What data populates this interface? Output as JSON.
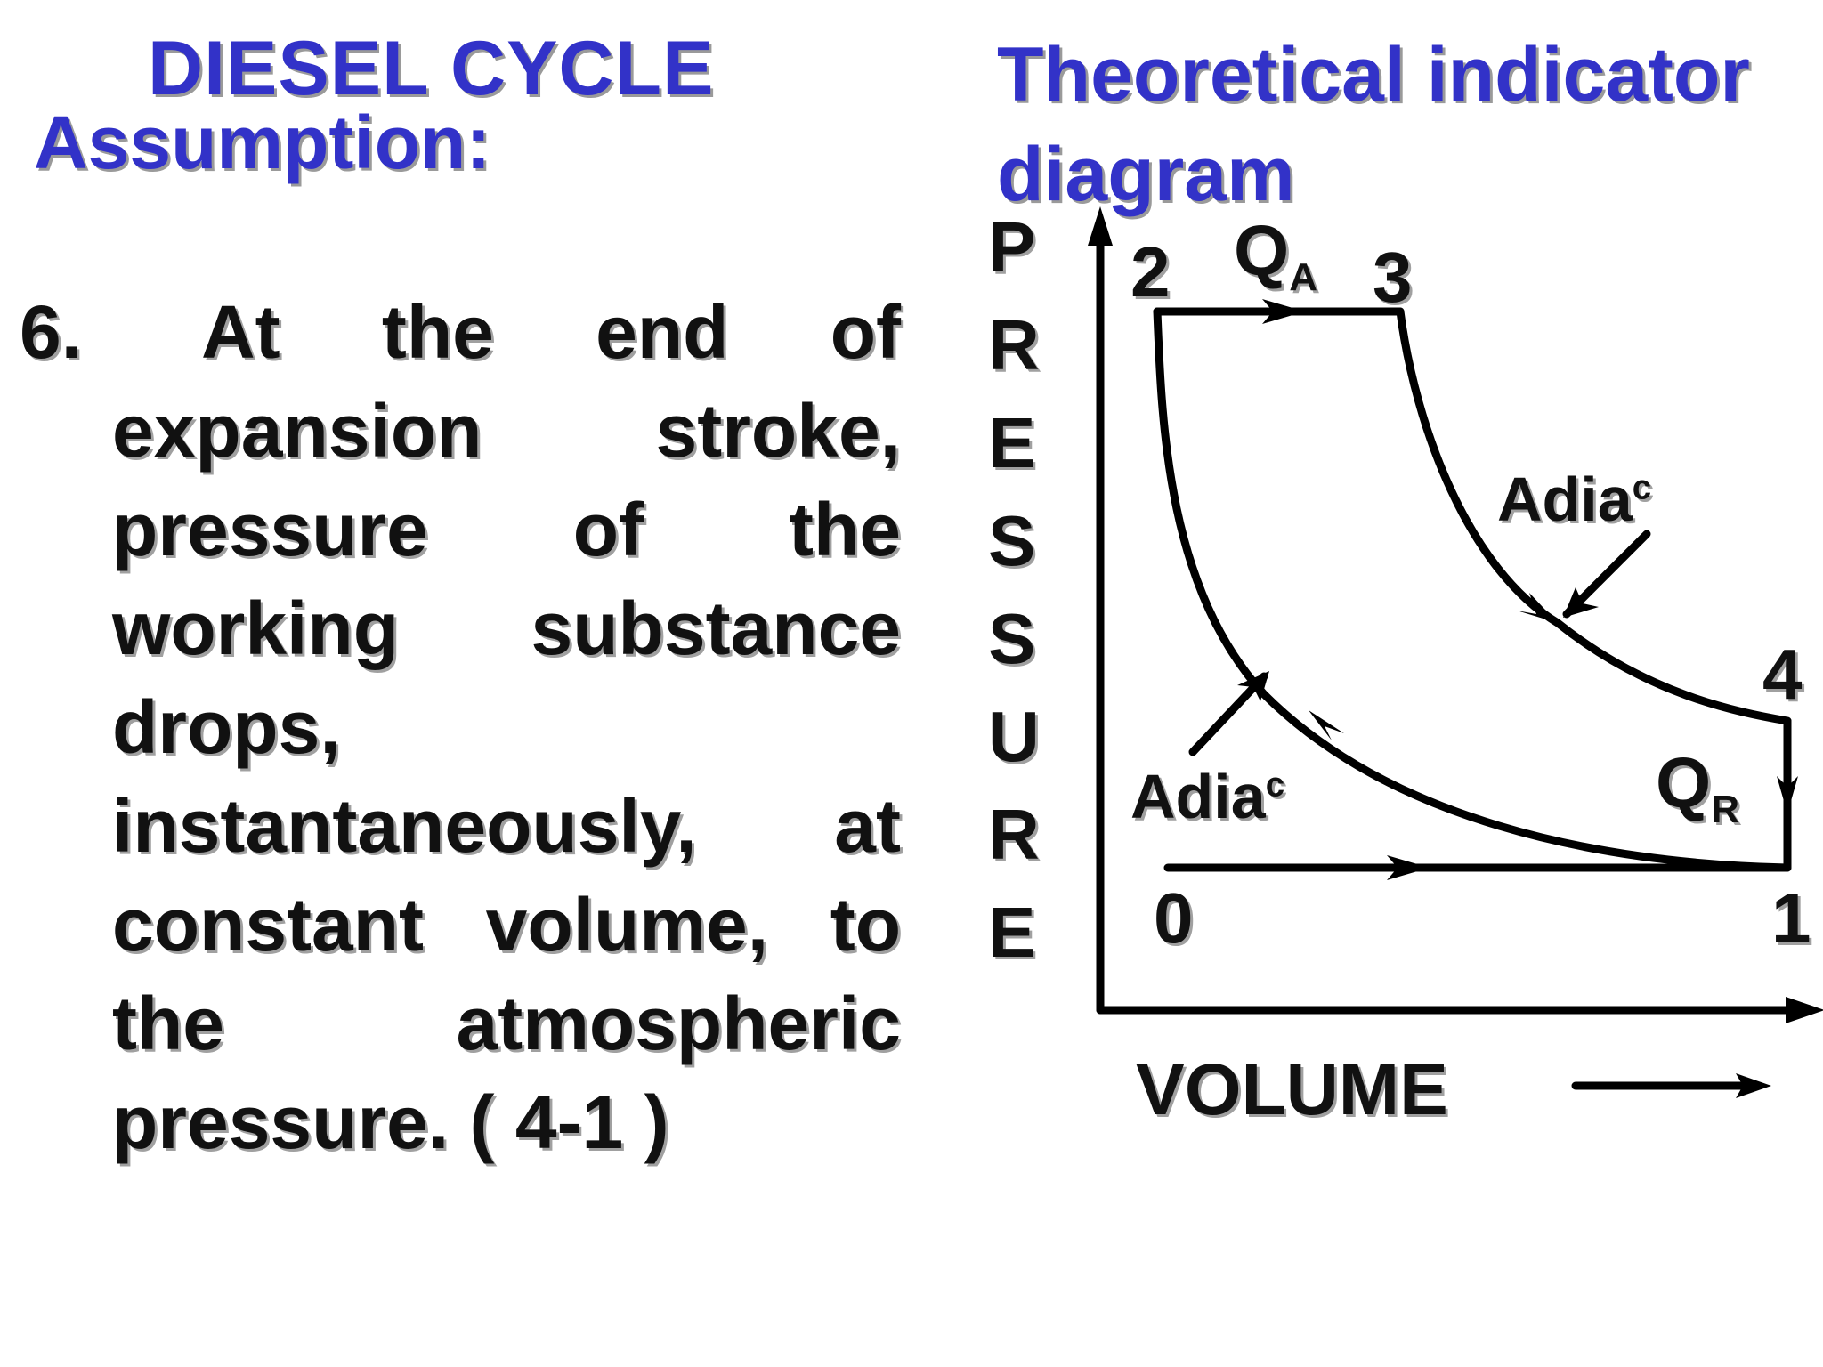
{
  "header": {
    "title": "DIESEL CYCLE",
    "subtitle": "Assumption:",
    "diagram_title": "Theoretical indicator diagram"
  },
  "point": {
    "number": "6.",
    "lines": [
      "At the end of",
      "expansion stroke,",
      "pressure of the",
      "working substance",
      "drops,",
      "instantaneously, at",
      "constant volume, to",
      "the atmospheric",
      "pressure. ( 4-1 )"
    ]
  },
  "diagram": {
    "y_axis_letters": [
      "P",
      "R",
      "E",
      "S",
      "S",
      "U",
      "R",
      "E"
    ],
    "x_axis_label": "VOLUME",
    "points": {
      "p0": "0",
      "p1": "1",
      "p2": "2",
      "p3": "3",
      "p4": "4"
    },
    "q_added": {
      "main": "Q",
      "sub": "A"
    },
    "q_rejected": {
      "main": "Q",
      "sub": "R"
    },
    "adiabatic_upper": {
      "main": "Adia",
      "sup": "c"
    },
    "adiabatic_lower": {
      "main": "Adia",
      "sup": "c"
    },
    "line_color": "#000000",
    "title_color": "#3232c8"
  }
}
